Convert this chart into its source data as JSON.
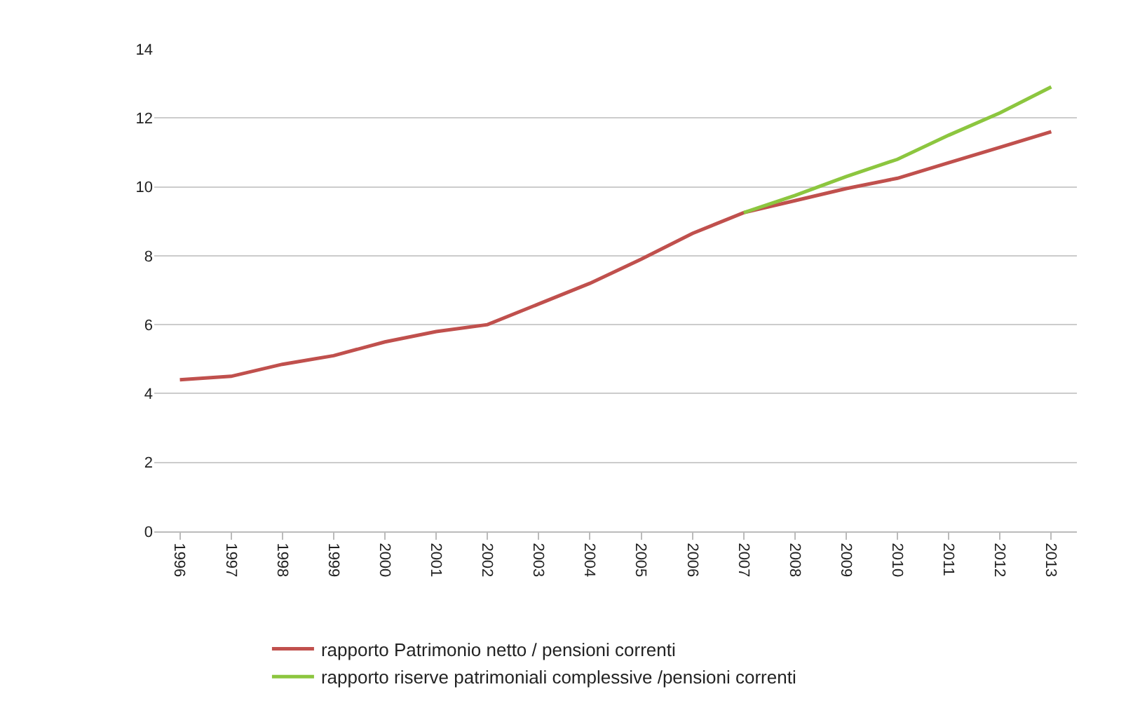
{
  "chart_data": {
    "type": "line",
    "categories": [
      "1996",
      "1997",
      "1998",
      "1999",
      "2000",
      "2001",
      "2002",
      "2003",
      "2004",
      "2005",
      "2006",
      "2007",
      "2008",
      "2009",
      "2010",
      "2011",
      "2012",
      "2013"
    ],
    "series": [
      {
        "name": "rapporto Patrimonio netto / pensioni correnti",
        "color": "#c0504d",
        "values": [
          4.4,
          4.5,
          4.85,
          5.1,
          5.5,
          5.8,
          6.0,
          6.6,
          7.2,
          7.9,
          8.65,
          9.25,
          9.6,
          9.95,
          10.25,
          10.7,
          11.15,
          11.6
        ]
      },
      {
        "name": "rapporto riserve patrimoniali complessive /pensioni correnti",
        "color": "#8cc63f",
        "values": [
          null,
          null,
          null,
          null,
          null,
          null,
          null,
          null,
          null,
          null,
          null,
          9.25,
          9.75,
          10.3,
          10.8,
          11.5,
          12.15,
          12.9
        ]
      }
    ],
    "ylim": [
      0,
      14
    ],
    "yticks": [
      0,
      2,
      4,
      6,
      8,
      10,
      12,
      14
    ],
    "grid": "y",
    "legend": "bottom",
    "marker": "none",
    "line_style": "solid"
  }
}
